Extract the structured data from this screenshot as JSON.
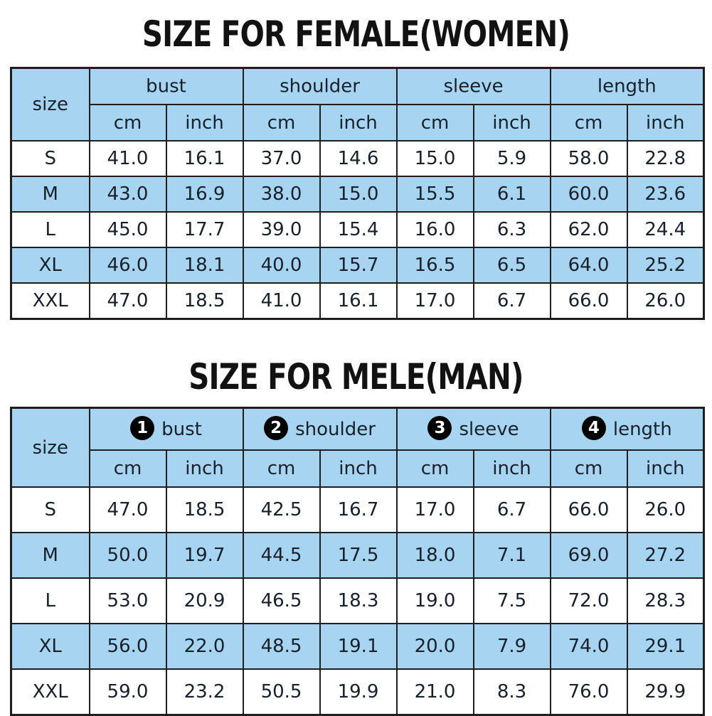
{
  "colors": {
    "header_fill": "#a7d4f1",
    "alt_row_fill": "#a7d4f1",
    "border": "#1e1e1e",
    "text": "#18212b",
    "title_text": "#121212",
    "badge_bg": "#000000",
    "badge_text": "#ffffff",
    "background": "#ffffff"
  },
  "unit_labels": [
    "cm",
    "inch"
  ],
  "tables": [
    {
      "id": "female",
      "title": "SIZE FOR FEMALE(WOMEN)",
      "size_header": "size",
      "columns": [
        {
          "badge": "",
          "label": "bust"
        },
        {
          "badge": "",
          "label": "shoulder"
        },
        {
          "badge": "",
          "label": "sleeve"
        },
        {
          "badge": "",
          "label": "length"
        }
      ],
      "rows": [
        {
          "size": "S",
          "highlight": false,
          "values": [
            "41.0",
            "16.1",
            "37.0",
            "14.6",
            "15.0",
            "5.9",
            "58.0",
            "22.8"
          ]
        },
        {
          "size": "M",
          "highlight": true,
          "values": [
            "43.0",
            "16.9",
            "38.0",
            "15.0",
            "15.5",
            "6.1",
            "60.0",
            "23.6"
          ]
        },
        {
          "size": "L",
          "highlight": false,
          "values": [
            "45.0",
            "17.7",
            "39.0",
            "15.4",
            "16.0",
            "6.3",
            "62.0",
            "24.4"
          ]
        },
        {
          "size": "XL",
          "highlight": true,
          "values": [
            "46.0",
            "18.1",
            "40.0",
            "15.7",
            "16.5",
            "6.5",
            "64.0",
            "25.2"
          ]
        },
        {
          "size": "XXL",
          "highlight": false,
          "values": [
            "47.0",
            "18.5",
            "41.0",
            "16.1",
            "17.0",
            "6.7",
            "66.0",
            "26.0"
          ]
        }
      ]
    },
    {
      "id": "male",
      "title": "SIZE FOR MELE(MAN)",
      "size_header": "size",
      "columns": [
        {
          "badge": "1",
          "label": "bust"
        },
        {
          "badge": "2",
          "label": "shoulder"
        },
        {
          "badge": "3",
          "label": "sleeve"
        },
        {
          "badge": "4",
          "label": "length"
        }
      ],
      "rows": [
        {
          "size": "S",
          "highlight": false,
          "values": [
            "47.0",
            "18.5",
            "42.5",
            "16.7",
            "17.0",
            "6.7",
            "66.0",
            "26.0"
          ]
        },
        {
          "size": "M",
          "highlight": true,
          "values": [
            "50.0",
            "19.7",
            "44.5",
            "17.5",
            "18.0",
            "7.1",
            "69.0",
            "27.2"
          ]
        },
        {
          "size": "L",
          "highlight": false,
          "values": [
            "53.0",
            "20.9",
            "46.5",
            "18.3",
            "19.0",
            "7.5",
            "72.0",
            "28.3"
          ]
        },
        {
          "size": "XL",
          "highlight": true,
          "values": [
            "56.0",
            "22.0",
            "48.5",
            "19.1",
            "20.0",
            "7.9",
            "74.0",
            "29.1"
          ]
        },
        {
          "size": "XXL",
          "highlight": false,
          "values": [
            "59.0",
            "23.2",
            "50.5",
            "19.9",
            "21.0",
            "8.3",
            "76.0",
            "29.9"
          ]
        }
      ]
    }
  ]
}
